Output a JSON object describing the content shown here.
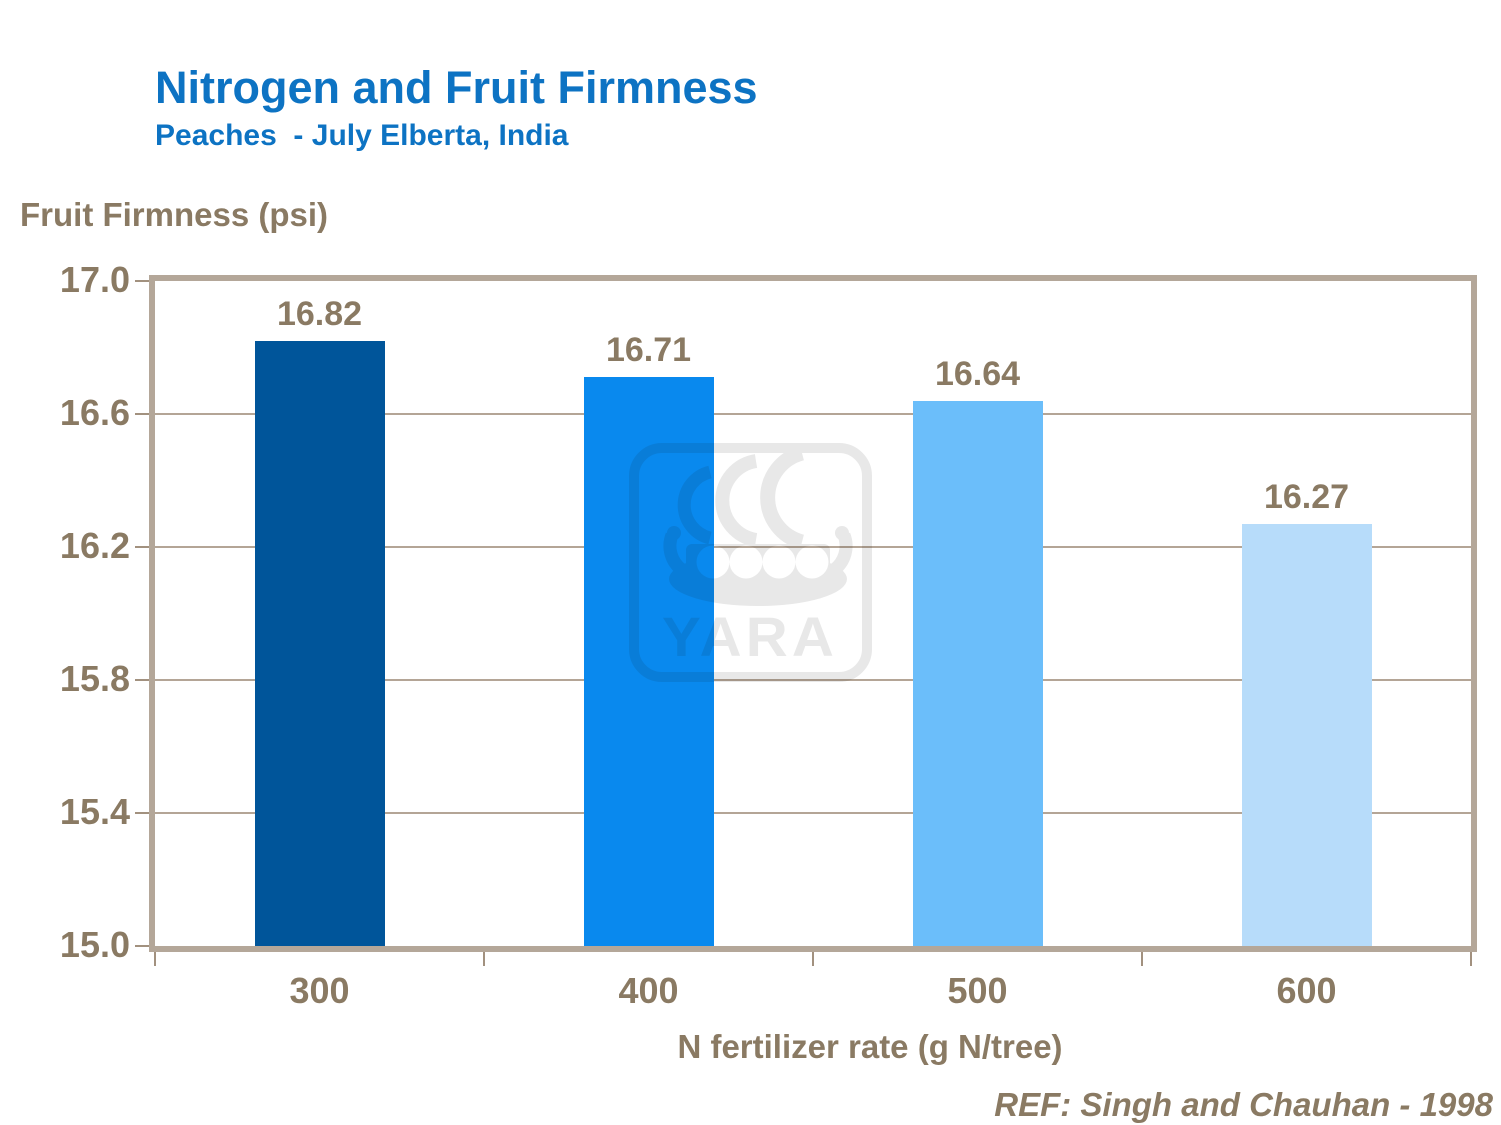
{
  "header": {
    "title": "Nitrogen and Fruit Firmness",
    "subtitle": "Peaches  - July Elberta, India"
  },
  "chart_data": {
    "type": "bar",
    "title": "Nitrogen and Fruit Firmness",
    "subtitle": "Peaches  - July Elberta, India",
    "categories": [
      "300",
      "400",
      "500",
      "600"
    ],
    "values": [
      16.82,
      16.71,
      16.64,
      16.27
    ],
    "value_labels": [
      "16.82",
      "16.71",
      "16.64",
      "16.27"
    ],
    "xlabel": "N fertilizer rate (g N/tree)",
    "ylabel": "Fruit Firmness (psi)",
    "ylim": [
      15.0,
      17.0
    ],
    "ytick_labels": [
      "17.0",
      "16.6",
      "16.2",
      "15.8",
      "15.4",
      "15.0"
    ],
    "bar_colors": [
      "#00559a",
      "#0989ee",
      "#6bbefa",
      "#b7dcfa"
    ],
    "grid": true,
    "legend": false
  },
  "colors": {
    "title_blue": "#0d73c3",
    "axis_brown": "#8a7a63",
    "frame_tan": "#b4a799",
    "watermark_gray": "#e8e8e8"
  },
  "watermark": {
    "text": "YARA"
  },
  "footer": {
    "reference": "REF: Singh and Chauhan - 1998"
  }
}
